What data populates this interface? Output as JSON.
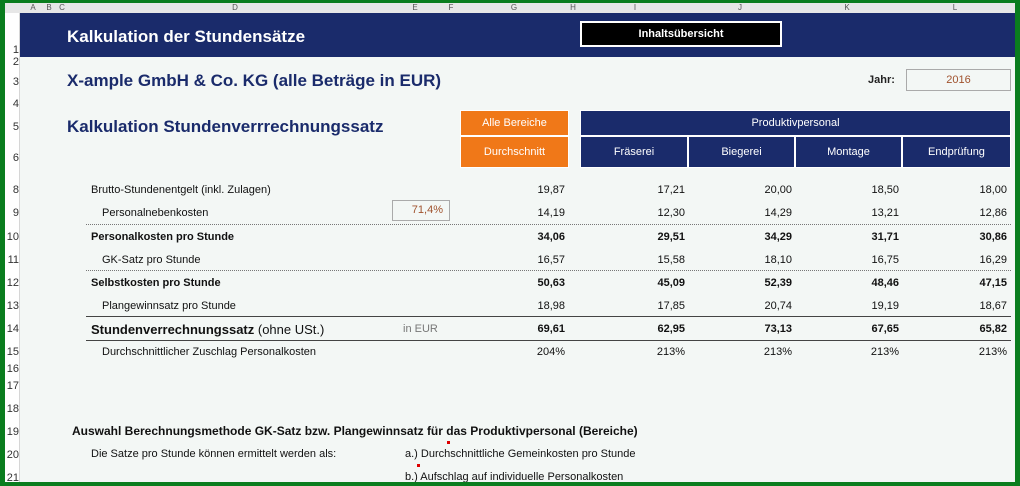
{
  "column_headers": [
    "A",
    "B",
    "C",
    "D",
    "E",
    "F",
    "G",
    "H",
    "I",
    "J",
    "K",
    "L"
  ],
  "row_headers": [
    "1",
    "2",
    "3",
    "4",
    "5",
    "6",
    "8",
    "9",
    "10",
    "11",
    "12",
    "13",
    "14",
    "15",
    "16",
    "17",
    "18",
    "19",
    "20",
    "21"
  ],
  "title": "Kalkulation der Stundensätze",
  "toc_button_label": "Inhaltsübersicht",
  "company_title": "X-ample GmbH & Co. KG (alle Beträge in EUR)",
  "year_label": "Jahr:",
  "year_value": "2016",
  "calc_title": "Kalkulation Stundenverrrechnungssatz",
  "header": {
    "all_areas": "Alle Bereiche",
    "average": "Durchschnitt",
    "productive_staff": "Produktivpersonal",
    "departments": [
      "Fräserei",
      "Biegerei",
      "Montage",
      "Endprüfung"
    ]
  },
  "rows": [
    {
      "label": "Brutto-Stundenentgelt (inkl. Zulagen)",
      "values": [
        "19,87",
        "17,21",
        "20,00",
        "18,50",
        "18,00"
      ]
    },
    {
      "label": "Personalnebenkosten",
      "pct": "71,4%",
      "values": [
        "14,19",
        "12,30",
        "14,29",
        "13,21",
        "12,86"
      ]
    },
    {
      "label": "Personalkosten pro Stunde",
      "values": [
        "34,06",
        "29,51",
        "34,29",
        "31,71",
        "30,86"
      ]
    },
    {
      "label": "GK-Satz pro Stunde",
      "values": [
        "16,57",
        "15,58",
        "18,10",
        "16,75",
        "16,29"
      ]
    },
    {
      "label": "Selbstkosten pro Stunde",
      "values": [
        "50,63",
        "45,09",
        "52,39",
        "48,46",
        "47,15"
      ]
    },
    {
      "label": "Plangewinnsatz pro Stunde",
      "values": [
        "18,98",
        "17,85",
        "20,74",
        "19,19",
        "18,67"
      ]
    },
    {
      "label_bold": "Stundenverrechnungssatz",
      "label_rest": " (ohne USt.)",
      "unit": "in EUR",
      "values": [
        "69,61",
        "62,95",
        "73,13",
        "67,65",
        "65,82"
      ]
    },
    {
      "label": "Durchschnittlicher Zuschlag Personalkosten",
      "values": [
        "204%",
        "213%",
        "213%",
        "213%",
        "213%"
      ]
    }
  ],
  "section_title": "Auswahl Berechnungsmethode GK-Satz bzw. Plangewinnsatz für das Produktivpersonal (Bereiche)",
  "method_intro": "Die Satze pro Stunde können ermittelt werden als:",
  "method_options": [
    "a.) Durchschnittliche Gemeinkosten pro Stunde",
    "b.) Aufschlag auf individuelle Personalkosten"
  ]
}
